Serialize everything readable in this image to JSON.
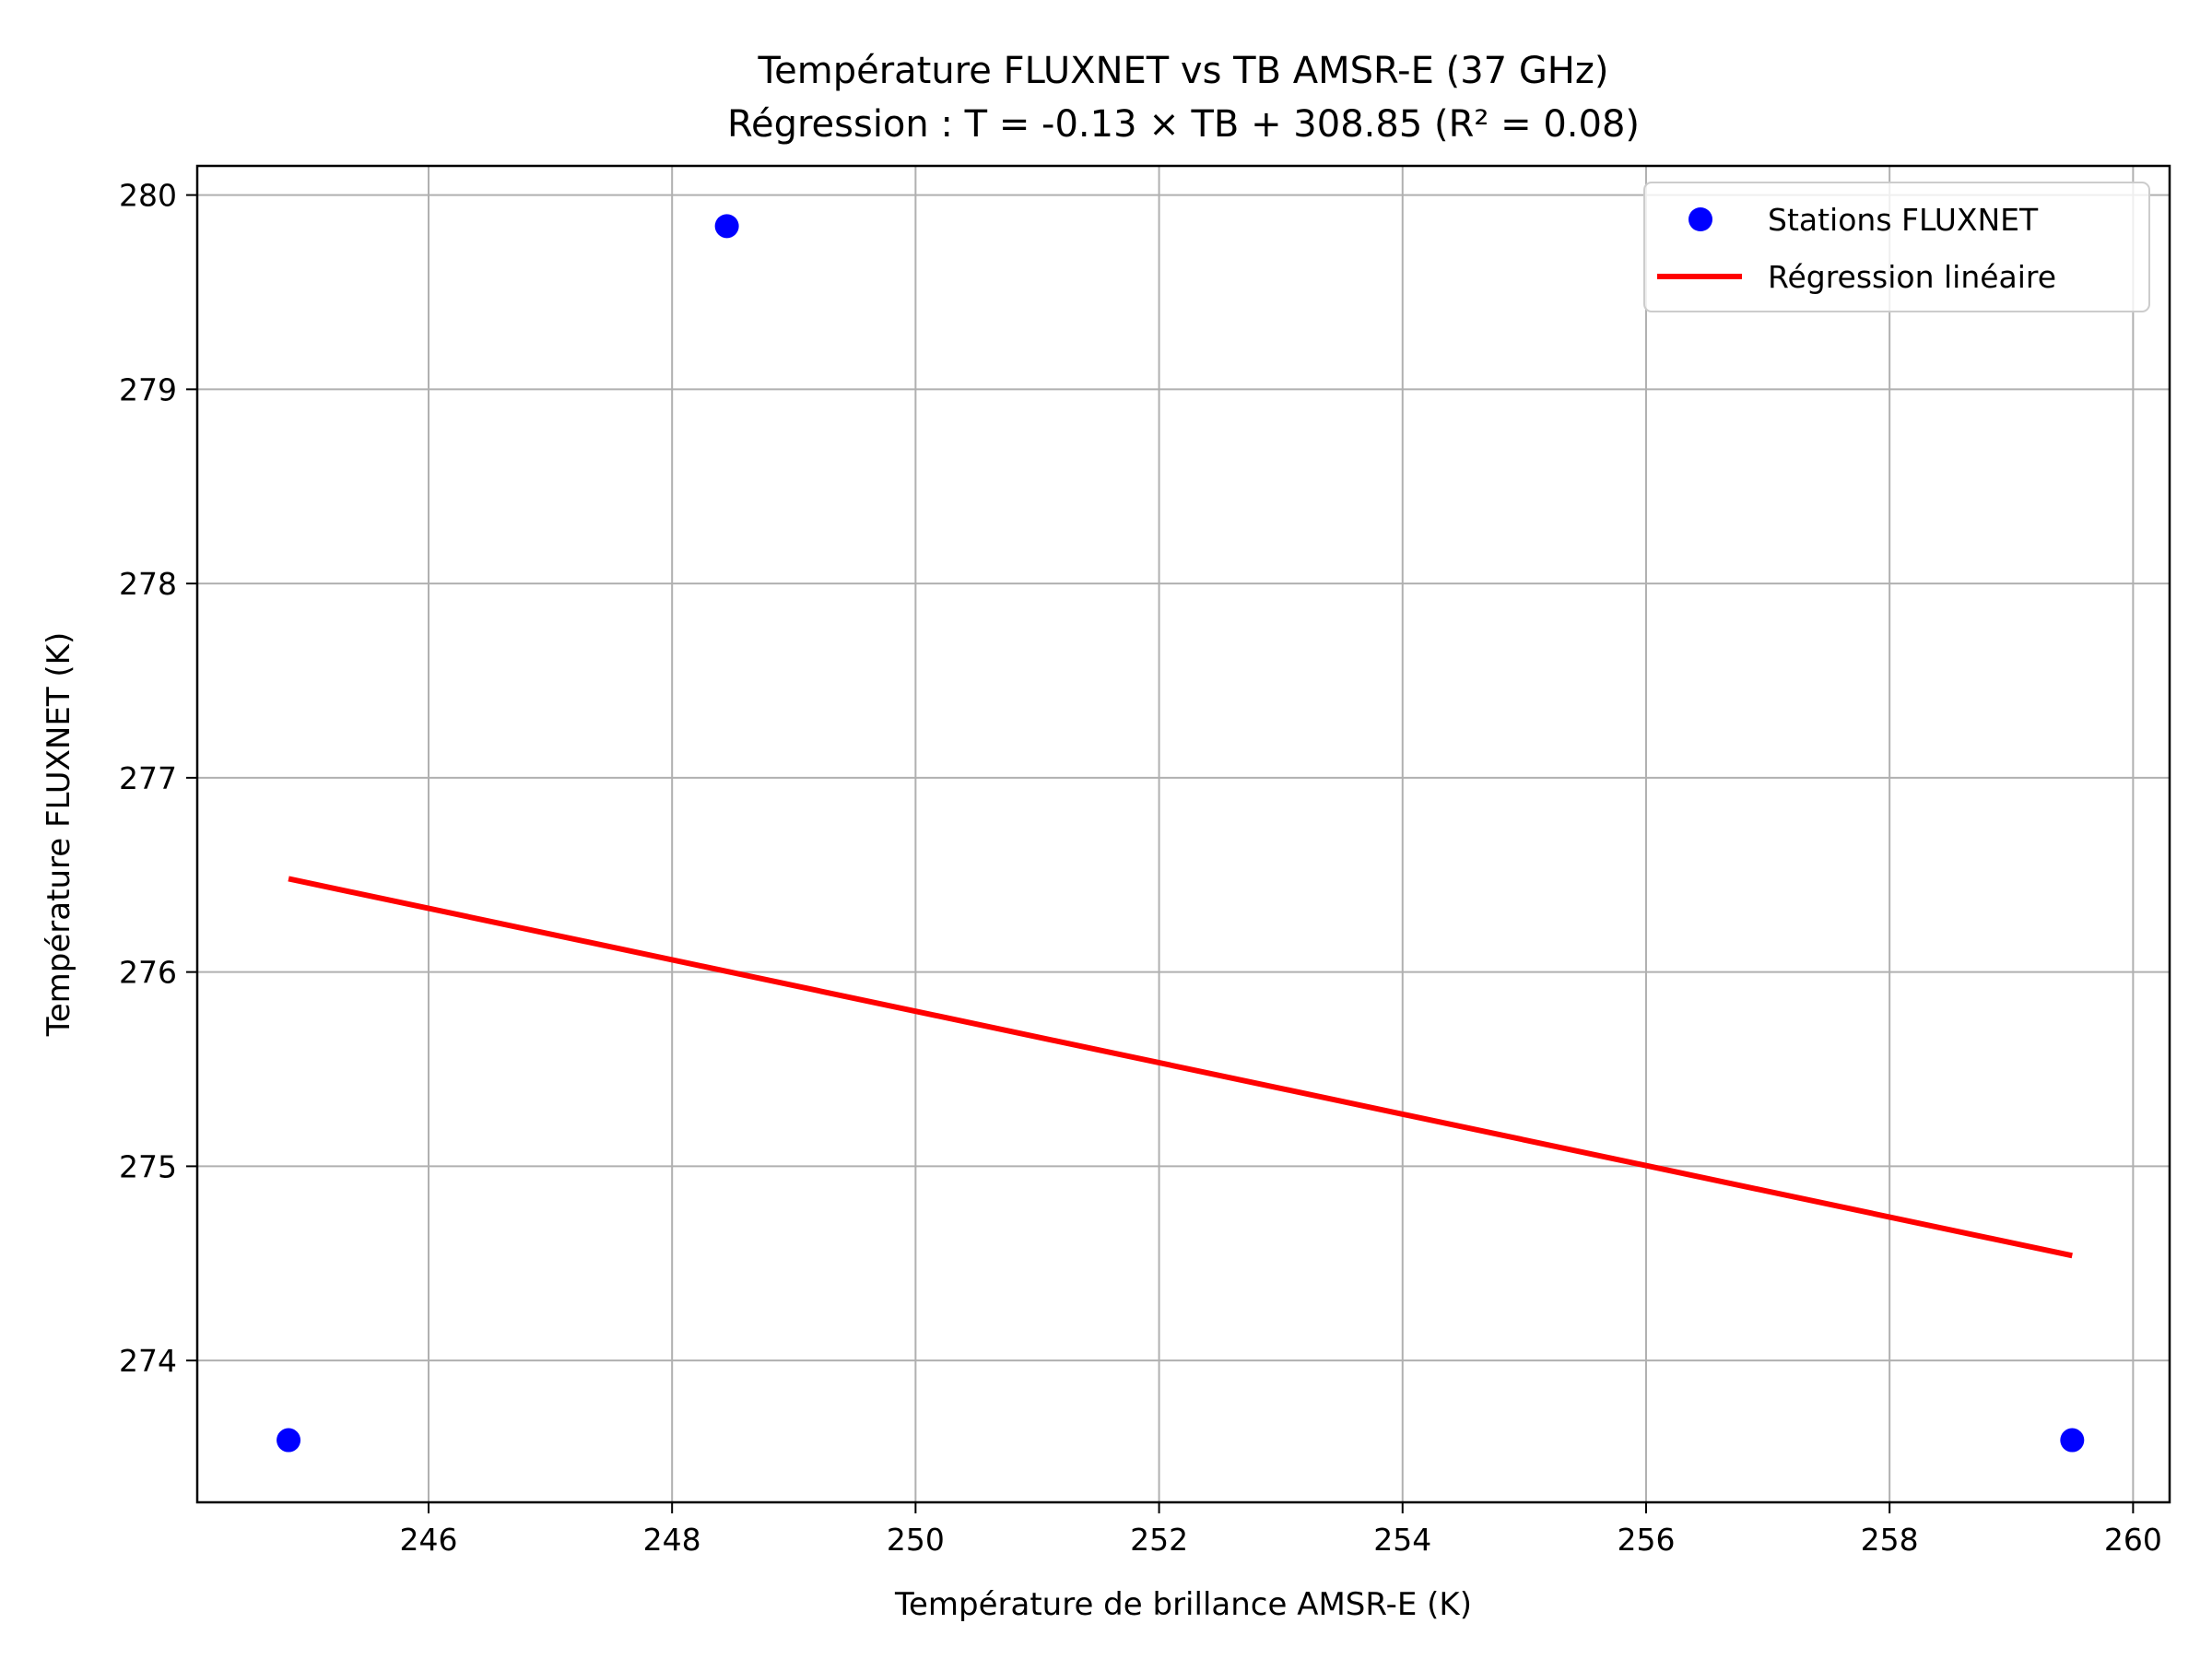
{
  "chart_data": {
    "type": "scatter",
    "title": "Température FLUXNET vs TB AMSR-E (37 GHz)",
    "subtitle": "Régression : T = -0.13 × TB + 308.85 (R² = 0.08)",
    "xlabel": "Température de brillance AMSR-E (K)",
    "ylabel": "Température FLUXNET (K)",
    "xlim": [
      244.1,
      260.3
    ],
    "ylim": [
      273.27,
      280.15
    ],
    "xticks": [
      246,
      248,
      250,
      252,
      254,
      256,
      258,
      260
    ],
    "yticks": [
      274,
      275,
      276,
      277,
      278,
      279,
      280
    ],
    "grid": true,
    "legend_position": "top-right",
    "series": [
      {
        "name": "Stations FLUXNET",
        "kind": "scatter",
        "color": "#0000ff",
        "points": [
          {
            "x": 244.85,
            "y": 273.59
          },
          {
            "x": 248.45,
            "y": 279.84
          },
          {
            "x": 259.5,
            "y": 273.59
          }
        ]
      },
      {
        "name": "Régression linéaire",
        "kind": "line",
        "color": "#ff0000",
        "points": [
          {
            "x": 244.85,
            "y": 276.48
          },
          {
            "x": 259.5,
            "y": 274.54
          }
        ]
      }
    ]
  }
}
